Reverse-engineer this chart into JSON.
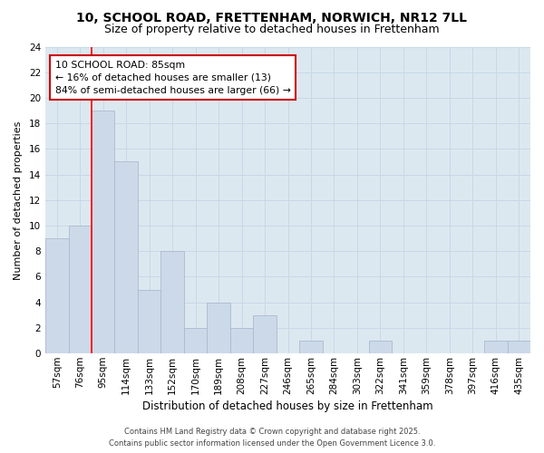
{
  "title_line1": "10, SCHOOL ROAD, FRETTENHAM, NORWICH, NR12 7LL",
  "title_line2": "Size of property relative to detached houses in Frettenham",
  "xlabel": "Distribution of detached houses by size in Frettenham",
  "ylabel": "Number of detached properties",
  "categories": [
    "57sqm",
    "76sqm",
    "95sqm",
    "114sqm",
    "133sqm",
    "152sqm",
    "170sqm",
    "189sqm",
    "208sqm",
    "227sqm",
    "246sqm",
    "265sqm",
    "284sqm",
    "303sqm",
    "322sqm",
    "341sqm",
    "359sqm",
    "378sqm",
    "397sqm",
    "416sqm",
    "435sqm"
  ],
  "values": [
    9,
    10,
    19,
    15,
    5,
    8,
    2,
    4,
    2,
    3,
    0,
    1,
    0,
    0,
    1,
    0,
    0,
    0,
    0,
    1,
    1
  ],
  "bar_color": "#ccd9e8",
  "bar_edge_color": "#aabbd0",
  "red_line_x": 1.5,
  "annotation_title": "10 SCHOOL ROAD: 85sqm",
  "annotation_line2": "← 16% of detached houses are smaller (13)",
  "annotation_line3": "84% of semi-detached houses are larger (66) →",
  "annotation_box_color": "#ffffff",
  "annotation_box_edge": "#cc0000",
  "ylim": [
    0,
    24
  ],
  "yticks": [
    0,
    2,
    4,
    6,
    8,
    10,
    12,
    14,
    16,
    18,
    20,
    22,
    24
  ],
  "grid_color": "#c8d8e8",
  "bg_color": "#dce8f0",
  "fig_bg_color": "#ffffff",
  "footnote": "Contains HM Land Registry data © Crown copyright and database right 2025.\nContains public sector information licensed under the Open Government Licence 3.0."
}
